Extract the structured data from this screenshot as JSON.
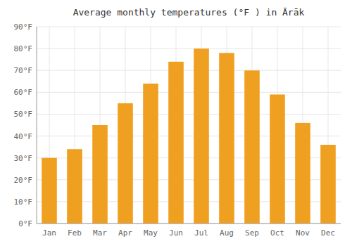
{
  "chart_data": {
    "type": "bar",
    "title": "Average monthly temperatures (°F ) in Ārāk",
    "categories": [
      "Jan",
      "Feb",
      "Mar",
      "Apr",
      "May",
      "Jun",
      "Jul",
      "Aug",
      "Sep",
      "Oct",
      "Nov",
      "Dec"
    ],
    "values": [
      30,
      34,
      45,
      55,
      64,
      74,
      80,
      78,
      70,
      59,
      46,
      36
    ],
    "color": "#F0A020",
    "ylim": [
      0,
      90
    ],
    "yticks": [
      {
        "value": 0,
        "label": "0°F"
      },
      {
        "value": 10,
        "label": "10°F"
      },
      {
        "value": 20,
        "label": "20°F"
      },
      {
        "value": 30,
        "label": "30°F"
      },
      {
        "value": 40,
        "label": "40°F"
      },
      {
        "value": 50,
        "label": "50°F"
      },
      {
        "value": 60,
        "label": "60°F"
      },
      {
        "value": 70,
        "label": "70°F"
      },
      {
        "value": 80,
        "label": "80°F"
      },
      {
        "value": 90,
        "label": "90°F"
      }
    ],
    "grid": true
  }
}
